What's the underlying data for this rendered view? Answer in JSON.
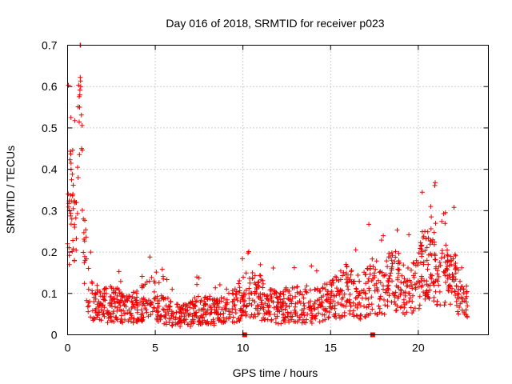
{
  "chart_data": {
    "type": "scatter",
    "title": "Day 016 of 2018, SRMTID for receiver p023",
    "xlabel": "GPS time / hours",
    "ylabel": "SRMTID / TECUs",
    "xlim": [
      0,
      24
    ],
    "ylim": [
      0,
      0.7
    ],
    "xticks": [
      0,
      5,
      10,
      15,
      20
    ],
    "xtick_labels": [
      "0",
      "5",
      "10",
      "15",
      "20"
    ],
    "yticks": [
      0,
      0.1,
      0.2,
      0.3,
      0.4,
      0.5,
      0.6,
      0.7
    ],
    "ytick_labels": [
      "0",
      "0.1",
      "0.2",
      "0.3",
      "0.4",
      "0.5",
      "0.6",
      "0.7"
    ],
    "grid": true,
    "marker": "+",
    "color": "#ee0000",
    "x_extent_hours": [
      0.0,
      22.8
    ],
    "series": [
      {
        "name": "SRMTID",
        "x": [
          0.0,
          0.1,
          0.2,
          0.3,
          0.4,
          0.5,
          0.6,
          0.7,
          0.75,
          0.8,
          0.9,
          1.0,
          1.2,
          1.5,
          2.0,
          2.5,
          3.0,
          3.5,
          4.0,
          4.5,
          5.0,
          5.5,
          6.0,
          6.5,
          7.0,
          7.5,
          8.0,
          8.5,
          9.0,
          9.5,
          10.0,
          10.5,
          11.0,
          11.5,
          12.0,
          12.5,
          13.0,
          13.5,
          14.0,
          14.5,
          15.0,
          15.5,
          16.0,
          16.5,
          17.0,
          17.5,
          18.0,
          18.5,
          19.0,
          19.5,
          20.0,
          20.3,
          20.5,
          21.0,
          21.5,
          21.8,
          22.0,
          22.3,
          22.5,
          22.8
        ],
        "y": [
          0.22,
          0.3,
          0.4,
          0.34,
          0.26,
          0.32,
          0.38,
          0.58,
          0.6,
          0.45,
          0.28,
          0.18,
          0.11,
          0.08,
          0.07,
          0.075,
          0.07,
          0.06,
          0.07,
          0.08,
          0.09,
          0.06,
          0.05,
          0.045,
          0.05,
          0.06,
          0.06,
          0.055,
          0.06,
          0.07,
          0.09,
          0.1,
          0.09,
          0.07,
          0.065,
          0.07,
          0.075,
          0.07,
          0.07,
          0.08,
          0.09,
          0.1,
          0.11,
          0.09,
          0.1,
          0.12,
          0.11,
          0.13,
          0.11,
          0.1,
          0.13,
          0.17,
          0.18,
          0.16,
          0.15,
          0.12,
          0.14,
          0.11,
          0.08,
          0.07
        ]
      }
    ],
    "ground_markers": [
      {
        "x": 10.1,
        "y": 0.0
      },
      {
        "x": 17.4,
        "y": 0.0
      }
    ]
  }
}
